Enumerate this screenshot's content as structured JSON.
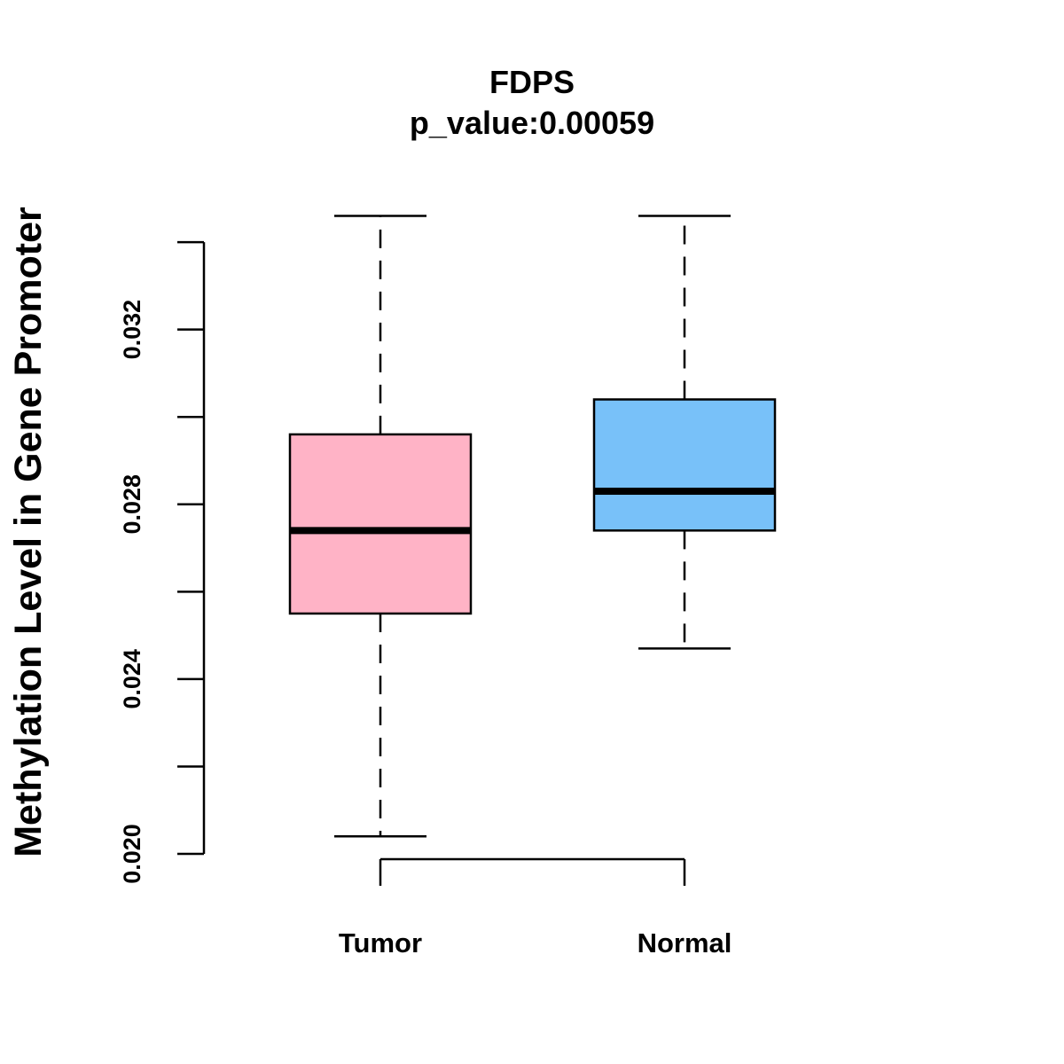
{
  "chart_data": {
    "type": "boxplot",
    "title": "FDPS",
    "subtitle": "p_value:0.00059",
    "xlabel": "",
    "ylabel": "Methylation Level in Gene Promoter",
    "ylim": [
      0.02,
      0.034
    ],
    "y_ticks": [
      0.02,
      0.022,
      0.024,
      0.026,
      0.028,
      0.03,
      0.032,
      0.034
    ],
    "y_tick_labels": [
      "0.020",
      "",
      "0.024",
      "",
      "0.028",
      "",
      "0.032",
      ""
    ],
    "categories": [
      "Tumor",
      "Normal"
    ],
    "series": [
      {
        "name": "Tumor",
        "whisker_low": 0.0204,
        "q1": 0.0255,
        "median": 0.0274,
        "q3": 0.0296,
        "whisker_high": 0.0346,
        "color": "#FFB3C6"
      },
      {
        "name": "Normal",
        "whisker_low": 0.0247,
        "q1": 0.0274,
        "median": 0.0283,
        "q3": 0.0304,
        "whisker_high": 0.0346,
        "color": "#78C1F9"
      }
    ],
    "grid": false,
    "legend": "none"
  }
}
